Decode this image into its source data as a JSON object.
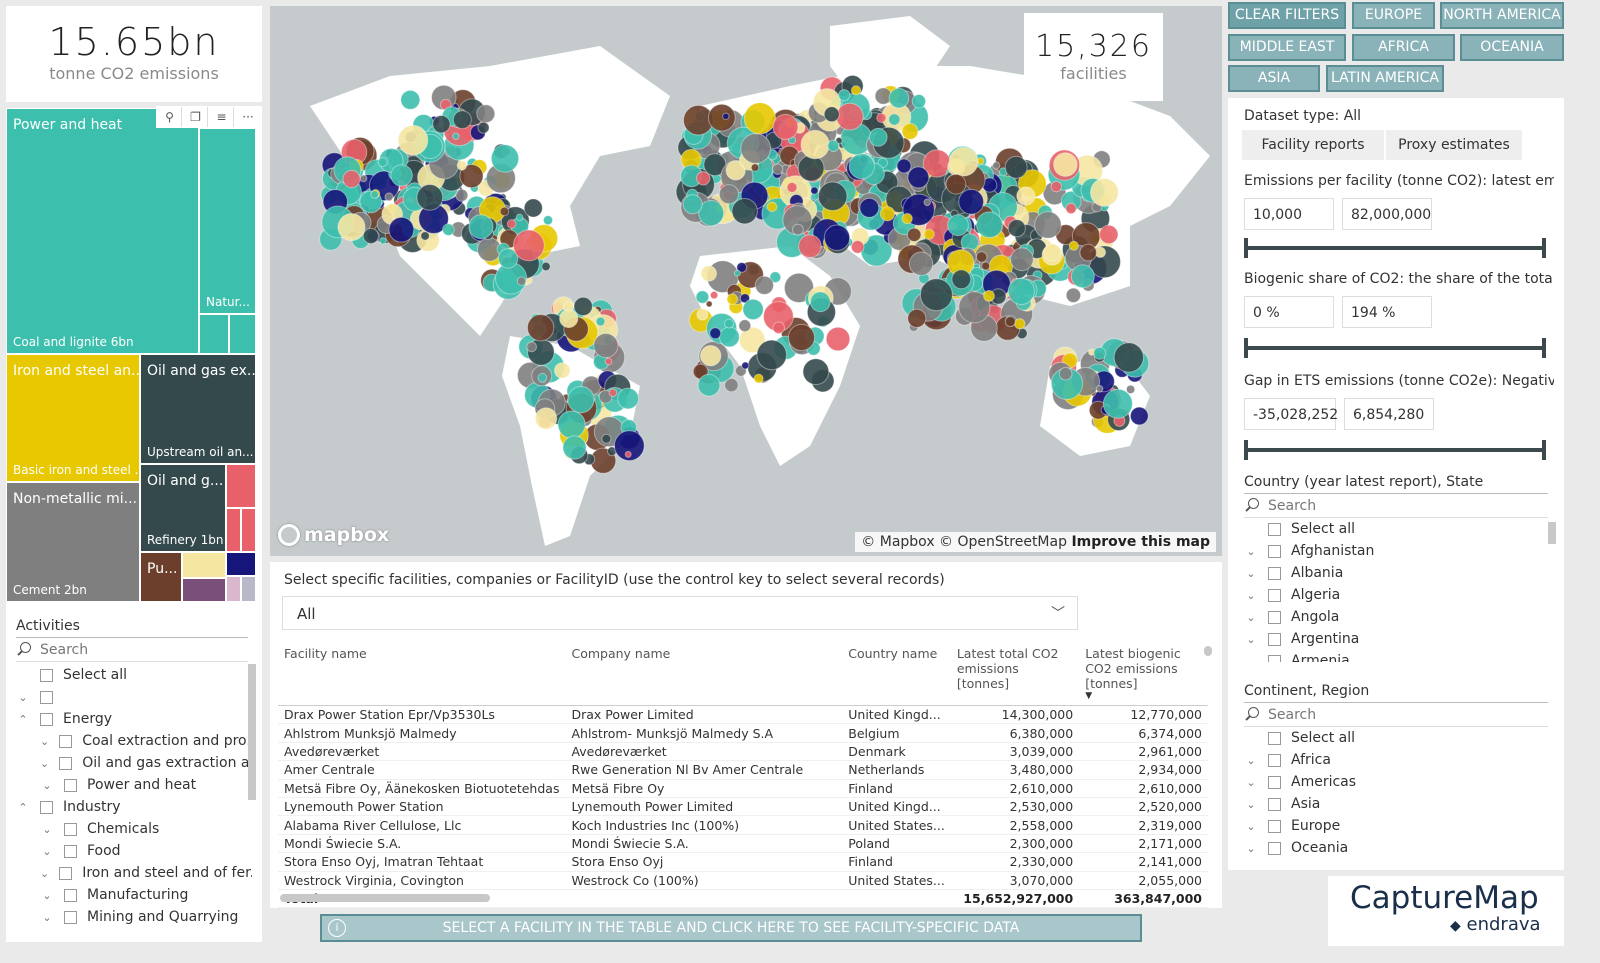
{
  "kpi_emissions": {
    "value": "15.65bn",
    "label": "tonne CO2 emissions"
  },
  "kpi_facilities": {
    "value": "15,326",
    "label": "facilities"
  },
  "treemap": {
    "power_heat": "Power and heat",
    "coal_lignite": "Coal and lignite 6bn",
    "natural": "Natur...",
    "iron_steel": "Iron and steel an...",
    "basic_iron": "Basic iron and steel ...",
    "oil_gas_ex": "Oil and gas ex...",
    "upstream": "Upstream oil an...",
    "oil_g": "Oil and g...",
    "refinery": "Refinery 1bn",
    "nonmetallic": "Non-metallic mi...",
    "cement": "Cement 2bn",
    "pu": "Pu...",
    "tools": {
      "pin": "⚲",
      "copy": "❐",
      "filter": "≡",
      "more": "···"
    }
  },
  "activities": {
    "title": "Activities",
    "search": "Search",
    "items": [
      {
        "label": "Select all",
        "chev": "",
        "indent": 0
      },
      {
        "label": "",
        "chev": "⌄",
        "indent": 0
      },
      {
        "label": "Energy",
        "chev": "⌃",
        "indent": 0
      },
      {
        "label": "Coal extraction and pro...",
        "chev": "⌄",
        "indent": 1
      },
      {
        "label": "Oil and gas extraction a...",
        "chev": "⌄",
        "indent": 1
      },
      {
        "label": "Power and heat",
        "chev": "⌄",
        "indent": 1
      },
      {
        "label": "Industry",
        "chev": "⌃",
        "indent": 0
      },
      {
        "label": "Chemicals",
        "chev": "⌄",
        "indent": 1
      },
      {
        "label": "Food",
        "chev": "⌄",
        "indent": 1
      },
      {
        "label": "Iron and steel and of fer...",
        "chev": "⌄",
        "indent": 1
      },
      {
        "label": "Manufacturing",
        "chev": "⌄",
        "indent": 1
      },
      {
        "label": "Mining and Quarrying",
        "chev": "⌄",
        "indent": 1
      }
    ]
  },
  "map": {
    "logo": "mapbox",
    "attrib": "© Mapbox © OpenStreetMap",
    "improve": "Improve this map"
  },
  "regions": {
    "clear": "CLEAR FILTERS",
    "europe": "EUROPE",
    "north_america": "NORTH AMERICA",
    "middle_east": "MIDDLE EAST",
    "africa": "AFRICA",
    "oceania": "OCEANIA",
    "asia": "ASIA",
    "latin_america": "LATIN AMERICA"
  },
  "filters": {
    "dataset_type": "Dataset type: All",
    "facility_reports": "Facility reports",
    "proxy_estimates": "Proxy estimates",
    "emissions_label": "Emissions per facility (tonne CO2): latest em...",
    "emissions_min": "10,000",
    "emissions_max": "82,000,000",
    "biogenic_label": "Biogenic share of CO2: the share of the tota...",
    "biogenic_min": "0 %",
    "biogenic_max": "194 %",
    "gap_label": "Gap in ETS emissions (tonne CO2e): Negativ...",
    "gap_min": "-35,028,252",
    "gap_max": "6,854,280"
  },
  "country": {
    "title": "Country (year latest report), State",
    "search": "Search",
    "items": [
      "Select all",
      "Afghanistan",
      "Albania",
      "Algeria",
      "Angola",
      "Argentina",
      "Armenia"
    ]
  },
  "continent": {
    "title": "Continent, Region",
    "search": "Search",
    "items": [
      "Select all",
      "Africa",
      "Americas",
      "Asia",
      "Europe",
      "Oceania"
    ]
  },
  "select_facility": {
    "label": "Select specific facilities, companies or FacilityID (use the control key to select several records)",
    "value": "All"
  },
  "table": {
    "headers": [
      "Facility name",
      "Company name",
      "Country name",
      "Latest total CO2 emissions [tonnes]",
      "Latest biogenic CO2 emissions [tonnes]"
    ],
    "rows": [
      [
        "Drax Power Station Epr/Vp3530Ls",
        "Drax Power Limited",
        "United Kingd...",
        "14,300,000",
        "12,770,000"
      ],
      [
        "Ahlstrom  Munksjö Malmedy",
        "Ahlstrom- Munksjö Malmedy S.A",
        "Belgium",
        "6,380,000",
        "6,374,000"
      ],
      [
        "Avedøreværket",
        "Avedøreværket",
        "Denmark",
        "3,039,000",
        "2,961,000"
      ],
      [
        "Amer Centrale",
        "Rwe Generation Nl Bv  Amer Centrale",
        "Netherlands",
        "3,480,000",
        "2,934,000"
      ],
      [
        "Metsä Fibre Oy, Äänekosken Biotuotetehdas",
        "Metsä Fibre Oy",
        "Finland",
        "2,610,000",
        "2,610,000"
      ],
      [
        "Lynemouth Power Station",
        "Lynemouth Power Limited",
        "United Kingd...",
        "2,530,000",
        "2,520,000"
      ],
      [
        "Alabama River Cellulose, Llc",
        "Koch Industries Inc (100%)",
        "United States...",
        "2,558,000",
        "2,319,000"
      ],
      [
        "Mondi Świecie S.A.",
        "Mondi Świecie S.A.",
        "Poland",
        "2,300,000",
        "2,171,000"
      ],
      [
        "Stora Enso Oyj, Imatran Tehtaat",
        "Stora Enso Oyj",
        "Finland",
        "2,330,000",
        "2,141,000"
      ],
      [
        "Westrock Virginia, Covington",
        "Westrock Co (100%)",
        "United States...",
        "3,070,000",
        "2,055,000"
      ]
    ],
    "total_label": "Total",
    "total_co2": "15,652,927,000",
    "total_bio": "363,847,000"
  },
  "bottom_button": "SELECT A FACILITY IN THE TABLE AND CLICK HERE TO SEE FACILITY-SPECIFIC DATA",
  "brand": {
    "name": "CaptureMap",
    "sub": "endrava"
  },
  "colors": {
    "teal": "#3dbfad",
    "yellow": "#e8c800",
    "darkslate": "#34494c",
    "gray": "#7f7f7f",
    "red": "#e8606a",
    "brown": "#6b3f2c",
    "navy": "#15157a",
    "paleyellow": "#f5e7a2",
    "purple": "#7a4f7a"
  }
}
